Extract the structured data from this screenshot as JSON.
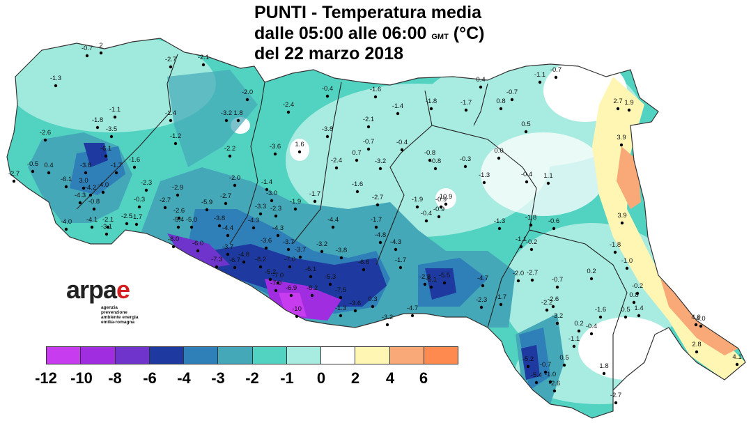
{
  "title": {
    "line1": "PUNTI - Temperatura media",
    "line2_a": "dalle 05:00 alle 06:00",
    "line2_gmt": "GMT",
    "line2_b": "(°C)",
    "line3": "del 22 marzo 2018"
  },
  "logo": {
    "word_a": "arpa",
    "word_e": "e",
    "subtitle_lines": [
      "agenzia",
      "prevenzione",
      "ambiente energia",
      "emilia-romagna"
    ]
  },
  "legend": {
    "colors": [
      "#c83cf0",
      "#a02ee0",
      "#6e34cc",
      "#1e3aa0",
      "#2f7fb8",
      "#44a8b8",
      "#52d3c2",
      "#a8ebe0",
      "#ffffff",
      "#fff6b4",
      "#f9a878",
      "#ff8a50"
    ],
    "tick_labels": [
      "-12",
      "-10",
      "-8",
      "-6",
      "-4",
      "-3",
      "-2",
      "-1",
      "0",
      "2",
      "4",
      "6"
    ]
  },
  "stations": [
    "-0.7",
    "2",
    "-1.3",
    "-2.7",
    "-2.1",
    "-1.1",
    "-0.7",
    "0.4",
    "-1.1",
    "-0.7",
    "0.8",
    "-1.8",
    "-3.5",
    "-2.6",
    "-6.1",
    "-0.5",
    "0.4",
    "-2.7",
    "-3.8",
    "-1.7",
    "-1.6",
    "-6.1",
    "3.0",
    "-4.2",
    "-4.0",
    "-4.3",
    "-0.8",
    "-2.3",
    "-0.3",
    "-2.9",
    "-2.7",
    "-4.0",
    "-4.1",
    "-2.1",
    "-3.1",
    "-2.5",
    "-1.7",
    "-2.6",
    "-5.9",
    "-5.4",
    "-5.0",
    "-8.0",
    "-6.0",
    "-1.4",
    "-1.2",
    "-2.0",
    "-3.2",
    "1.8",
    "-2.2",
    "-2.0",
    "-2.7",
    "-3.8",
    "-4.4",
    "-3.7",
    "-7.3",
    "-6.7",
    "-4.8",
    "-8.2",
    "-5.2",
    "-7.0",
    "-7.0",
    "-6.9",
    "-8.2",
    "-10",
    "-2.4",
    "-3.6",
    "1.6",
    "-3.8",
    "-1.4",
    "-3.0",
    "-1.9",
    "-3.3",
    "-2.3",
    "-1.7",
    "-4.3",
    "-4.3",
    "-3.6",
    "-3.7",
    "-3.7",
    "-7.0",
    "-3.2",
    "-3.8",
    "-6.1",
    "-5.3",
    "-7.5",
    "-1.3",
    "-3.6",
    "-0.4",
    "-1.6",
    "-1.4",
    "-1.8",
    "-1.7",
    "-2.1",
    "-0.7",
    "-0.4",
    "0.7",
    "-3.2",
    "-2.4",
    "-1.6",
    "-2.7",
    "-0.8",
    "-0.8",
    "-0.3",
    "0.0",
    "-1.3",
    "-1.9",
    "-0.9",
    "10.9",
    "-0.4",
    "-0.9",
    "-4.4",
    "-1.7",
    "-4.8",
    "-4.3",
    "-6.6",
    "-1.7",
    "0.3",
    "-3.2",
    "-4.7",
    "-2.8",
    "-5.1",
    "-5.5",
    "-4.7",
    "-2.3",
    "-1.3",
    "-1.8",
    "-0.6",
    "-1.1",
    "-0.2",
    "-0.4",
    "1.1",
    "0.5",
    "2.7",
    "1.9",
    "3.9",
    "3.9",
    "-1.8",
    "-1.0",
    "-2.7",
    "-2.0",
    "-0.7",
    "0.2",
    "-0.2",
    "0.8",
    "-1.7",
    "-2.2",
    "-2.6",
    "-3.2",
    "-1.6",
    "0.5",
    "1.4",
    "0.2",
    "-0.4",
    "-1.1",
    "4.0",
    "4.0",
    "2.8",
    "4.1",
    "-5.2",
    "-0.7",
    "-1.0",
    "0.5",
    "-5.4",
    "-2.6",
    "1.8",
    "-2.7"
  ]
}
